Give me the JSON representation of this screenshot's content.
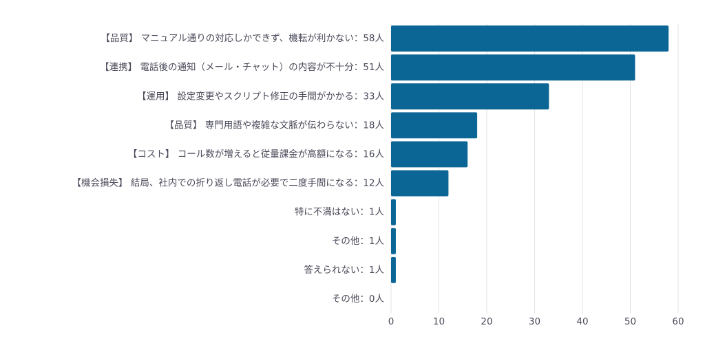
{
  "chart_data": {
    "type": "bar",
    "orientation": "horizontal",
    "categories": [
      "【品質】 マニュアル通りの対応しかできず、機転が利かない：58人",
      "【連携】 電話後の通知（メール・チャット）の内容が不十分：51人",
      "【運用】 設定変更やスクリプト修正の手間がかかる：33人",
      "【品質】 専門用語や複雑な文脈が伝わらない：18人",
      "【コスト】 コール数が増えると従量課金が高額になる：16人",
      "【機会損失】 結局、社内での折り返し電話が必要で二度手間になる：12人",
      "特に不満はない：1人",
      "その他：1人",
      "答えられない：1人",
      "その他：0人"
    ],
    "values": [
      58,
      51,
      33,
      18,
      16,
      12,
      1,
      1,
      1,
      0
    ],
    "color": "#0b6696",
    "xlim": [
      0,
      60
    ],
    "xticks": [
      0,
      10,
      20,
      30,
      40,
      50,
      60
    ],
    "grid": true
  }
}
